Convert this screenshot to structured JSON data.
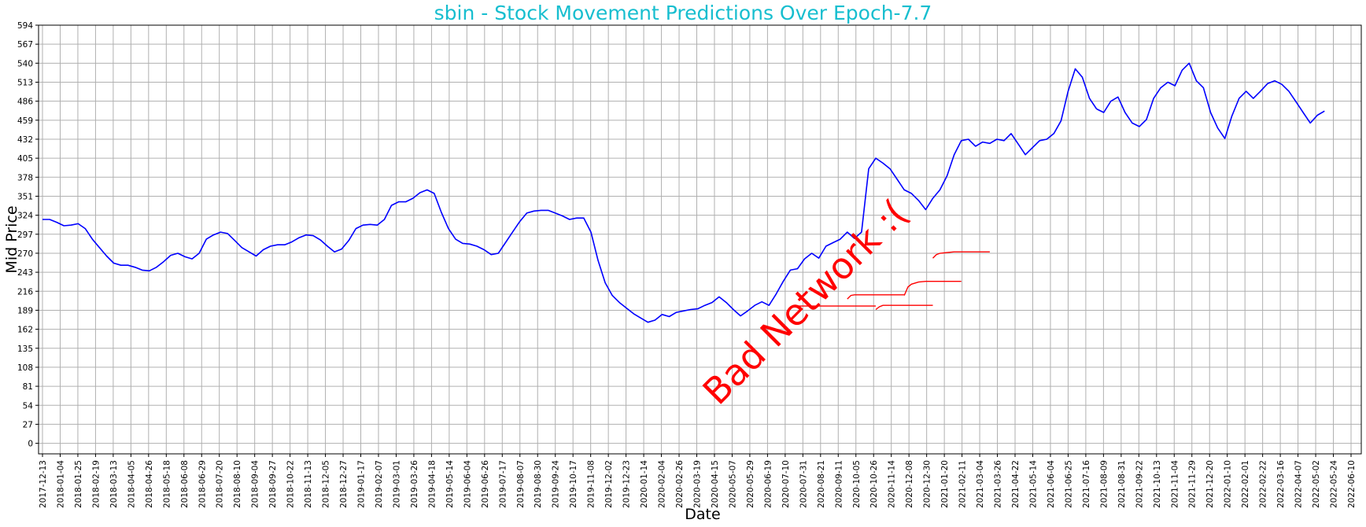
{
  "chart_data": {
    "type": "line",
    "title": "sbin - Stock Movement Predictions Over Epoch-7.7",
    "xlabel": "Date",
    "ylabel": "Mid Price",
    "ylim": [
      -15,
      594
    ],
    "y_ticks": [
      0,
      27,
      54,
      81,
      108,
      135,
      162,
      189,
      216,
      243,
      270,
      297,
      324,
      351,
      378,
      405,
      432,
      459,
      486,
      513,
      540,
      567,
      594
    ],
    "x_ticks": [
      "2017-12-13",
      "2018-01-04",
      "2018-01-25",
      "2018-02-19",
      "2018-03-13",
      "2018-04-05",
      "2018-04-26",
      "2018-05-18",
      "2018-06-08",
      "2018-06-29",
      "2018-07-20",
      "2018-08-10",
      "2018-09-04",
      "2018-09-27",
      "2018-10-22",
      "2018-11-13",
      "2018-12-05",
      "2018-12-27",
      "2019-01-17",
      "2019-02-07",
      "2019-03-01",
      "2019-03-26",
      "2019-04-18",
      "2019-05-14",
      "2019-06-04",
      "2019-06-26",
      "2019-07-17",
      "2019-08-07",
      "2019-08-30",
      "2019-09-24",
      "2019-10-17",
      "2019-11-08",
      "2019-12-02",
      "2019-12-23",
      "2020-01-14",
      "2020-02-04",
      "2020-02-26",
      "2020-03-19",
      "2020-04-15",
      "2020-05-07",
      "2020-05-29",
      "2020-06-19",
      "2020-07-10",
      "2020-07-31",
      "2020-08-21",
      "2020-09-11",
      "2020-10-05",
      "2020-10-26",
      "2020-11-14",
      "2020-12-08",
      "2020-12-30",
      "2021-01-20",
      "2021-02-11",
      "2021-03-04",
      "2021-03-26",
      "2021-04-22",
      "2021-05-14",
      "2021-06-04",
      "2021-06-25",
      "2021-07-16",
      "2021-08-09",
      "2021-08-31",
      "2021-09-22",
      "2021-10-13",
      "2021-11-04",
      "2021-11-29",
      "2021-12-20",
      "2022-01-10",
      "2022-02-01",
      "2022-02-22",
      "2022-03-16",
      "2022-04-07",
      "2022-05-02",
      "2022-05-24",
      "2022-06-10"
    ],
    "grid": true,
    "legend": "none",
    "series": [
      {
        "color": "#0000ff",
        "x": [
          0,
          1,
          2,
          3,
          4,
          5,
          6,
          7,
          8,
          9,
          10,
          11,
          12,
          13,
          14,
          15,
          16,
          17,
          18,
          19,
          20,
          21,
          22,
          23,
          24,
          25,
          26,
          27,
          28,
          29,
          30,
          31,
          32,
          33,
          34,
          35,
          36,
          37,
          38,
          39,
          40,
          41,
          42,
          43,
          44,
          45,
          46,
          47,
          48,
          49,
          50,
          51,
          52,
          53,
          54,
          55,
          56,
          57,
          58,
          59,
          60,
          61,
          62,
          63,
          64,
          65,
          66,
          67,
          68,
          69,
          70,
          71,
          72,
          73,
          74,
          75,
          76,
          77,
          78,
          79,
          80,
          81,
          82,
          83,
          84,
          85,
          86,
          87,
          88,
          89,
          90,
          91,
          92,
          93,
          94,
          95,
          96,
          97,
          98,
          99,
          100,
          101,
          102,
          103,
          104,
          105,
          106,
          107,
          108,
          109,
          110,
          111,
          112,
          113,
          114,
          115,
          116,
          117,
          118,
          119,
          120,
          121,
          122,
          123,
          124,
          125,
          126,
          127,
          128,
          129,
          130,
          131,
          132,
          133,
          134,
          135,
          136,
          137,
          138,
          139,
          140,
          141,
          142,
          143,
          144,
          145,
          146,
          147,
          148
        ],
        "values": [
          318,
          318,
          314,
          309,
          310,
          312,
          305,
          290,
          278,
          266,
          256,
          253,
          253,
          250,
          246,
          245,
          250,
          258,
          267,
          270,
          265,
          262,
          270,
          290,
          296,
          300,
          298,
          288,
          278,
          272,
          266,
          275,
          280,
          282,
          282,
          286,
          292,
          296,
          295,
          289,
          280,
          272,
          276,
          288,
          305,
          310,
          311,
          310,
          318,
          338,
          343,
          343,
          348,
          356,
          360,
          355,
          328,
          305,
          290,
          284,
          283,
          280,
          275,
          268,
          270,
          285,
          300,
          315,
          327,
          330,
          331,
          331,
          327,
          323,
          318,
          320,
          320,
          300,
          260,
          228,
          210,
          200,
          192,
          184,
          178,
          172,
          175,
          183,
          180,
          186,
          188,
          190,
          191,
          196,
          200,
          208,
          200,
          190,
          181,
          188,
          196,
          201,
          196,
          212,
          230,
          246,
          248,
          262,
          270,
          263,
          280,
          285,
          290,
          300,
          291,
          300,
          390,
          405,
          398,
          390,
          375,
          360,
          355,
          345,
          332,
          348,
          360,
          380,
          410,
          430,
          432,
          422,
          428,
          426,
          432,
          430,
          440,
          425,
          410,
          420,
          430,
          432,
          440,
          458,
          500,
          532,
          520,
          490,
          475
        ]
      },
      {
        "color": "#0000ff",
        "x": [
          148,
          149,
          150,
          151,
          152,
          153,
          154,
          155,
          156,
          157,
          158,
          159,
          160,
          161,
          162,
          163,
          164,
          165,
          166,
          167,
          168,
          169,
          170,
          171,
          172,
          173,
          174,
          175,
          176,
          177,
          178,
          179,
          180
        ],
        "values": [
          475,
          470,
          486,
          492,
          470,
          455,
          450,
          460,
          490,
          505,
          513,
          508,
          530,
          540,
          515,
          505,
          470,
          448,
          433,
          465,
          490,
          500,
          490,
          500,
          511,
          515,
          510,
          500,
          485,
          470,
          455,
          466,
          472
        ]
      }
    ],
    "predictions": [
      {
        "color": "#ff0000",
        "x": [
          105,
          106,
          107,
          108,
          109,
          110,
          111,
          112,
          113,
          114,
          115,
          116,
          117
        ],
        "values": [
          194,
          195,
          195,
          195,
          195,
          195,
          195,
          195,
          195,
          195,
          195,
          195,
          195
        ]
      },
      {
        "color": "#ff0000",
        "x": [
          113,
          113.5,
          114,
          115,
          116,
          117,
          118,
          119,
          120,
          121
        ],
        "values": [
          205,
          210,
          211,
          211,
          211,
          211,
          211,
          211,
          211,
          211
        ]
      },
      {
        "color": "#ff0000",
        "x": [
          117,
          117.5,
          118,
          119,
          120,
          121,
          122,
          123,
          124,
          125
        ],
        "values": [
          190,
          194,
          196,
          196,
          196,
          196,
          196,
          196,
          196,
          196
        ]
      },
      {
        "color": "#ff0000",
        "x": [
          121,
          121.5,
          122,
          123,
          124,
          125,
          126,
          127,
          128,
          129
        ],
        "values": [
          210,
          222,
          226,
          229,
          230,
          230,
          230,
          230,
          230,
          230
        ]
      },
      {
        "color": "#ff0000",
        "x": [
          125,
          125.5,
          126,
          127,
          128,
          129,
          130,
          131,
          132,
          133
        ],
        "values": [
          263,
          268,
          270,
          271,
          272,
          272,
          272,
          272,
          272,
          272
        ]
      }
    ],
    "annotation": "Bad Network :("
  }
}
